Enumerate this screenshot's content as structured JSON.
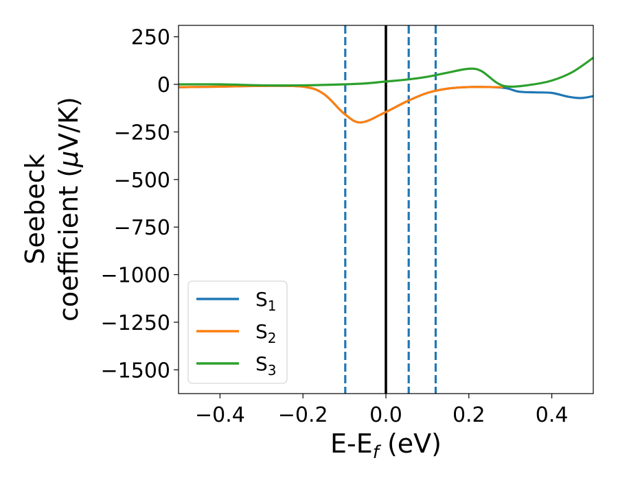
{
  "chart_data": {
    "type": "line",
    "xlabel": "E-E",
    "xlabel_sub": "f",
    "xlabel_unit": " (eV)",
    "ylabel_line1": "Seebeck",
    "ylabel_line2": "coefficient  (",
    "ylabel_mu": "μ",
    "ylabel_unit": "V/K)",
    "xlim": [
      -0.5,
      0.5
    ],
    "ylim": [
      -1625,
      310
    ],
    "xticks": [
      -0.4,
      -0.2,
      0.0,
      0.2,
      0.4
    ],
    "xtick_labels": [
      "−0.4",
      "−0.2",
      "0.0",
      "0.2",
      "0.4"
    ],
    "yticks": [
      250,
      0,
      -250,
      -500,
      -750,
      -1000,
      -1250,
      -1500
    ],
    "ytick_labels": [
      "250",
      "0",
      "−250",
      "−500",
      "−750",
      "−1000",
      "−1250",
      "−1500"
    ],
    "grid": false,
    "legend_position": "lower-left",
    "vlines": [
      {
        "x": 0.0,
        "color": "#000000",
        "style": "solid"
      },
      {
        "x": -0.098,
        "color": "#1f77b4",
        "style": "dashed"
      },
      {
        "x": 0.055,
        "color": "#1f77b4",
        "style": "dashed"
      },
      {
        "x": 0.12,
        "color": "#1f77b4",
        "style": "dashed"
      }
    ],
    "series": [
      {
        "name": "S",
        "sub": "1",
        "color": "#1f77b4",
        "x": [
          -0.5,
          -0.4,
          -0.3,
          -0.2,
          -0.15,
          -0.1,
          -0.06,
          0.0,
          0.05,
          0.1,
          0.15,
          0.2,
          0.25,
          0.29,
          0.32,
          0.36,
          0.4,
          0.44,
          0.47,
          0.5
        ],
        "y": [
          -15,
          -12,
          -8,
          -12,
          -50,
          -155,
          -200,
          -145,
          -90,
          -45,
          -22,
          -14,
          -14,
          -20,
          -38,
          -42,
          -45,
          -65,
          -72,
          -62
        ]
      },
      {
        "name": "S",
        "sub": "2",
        "color": "#ff7f0e",
        "x": [
          -0.5,
          -0.4,
          -0.3,
          -0.2,
          -0.15,
          -0.1,
          -0.06,
          0.0,
          0.05,
          0.1,
          0.15,
          0.2,
          0.25,
          0.28
        ],
        "y": [
          -15,
          -12,
          -8,
          -12,
          -50,
          -155,
          -200,
          -145,
          -90,
          -45,
          -22,
          -14,
          -14,
          -15
        ]
      },
      {
        "name": "S",
        "sub": "3",
        "color": "#2ca02c",
        "x": [
          -0.5,
          -0.4,
          -0.3,
          -0.2,
          -0.1,
          -0.05,
          0.0,
          0.05,
          0.1,
          0.15,
          0.2,
          0.23,
          0.27,
          0.3,
          0.35,
          0.4,
          0.45,
          0.5
        ],
        "y": [
          0,
          0,
          -5,
          -5,
          0,
          5,
          15,
          25,
          40,
          62,
          82,
          70,
          5,
          -12,
          -2,
          20,
          65,
          140
        ]
      }
    ]
  }
}
